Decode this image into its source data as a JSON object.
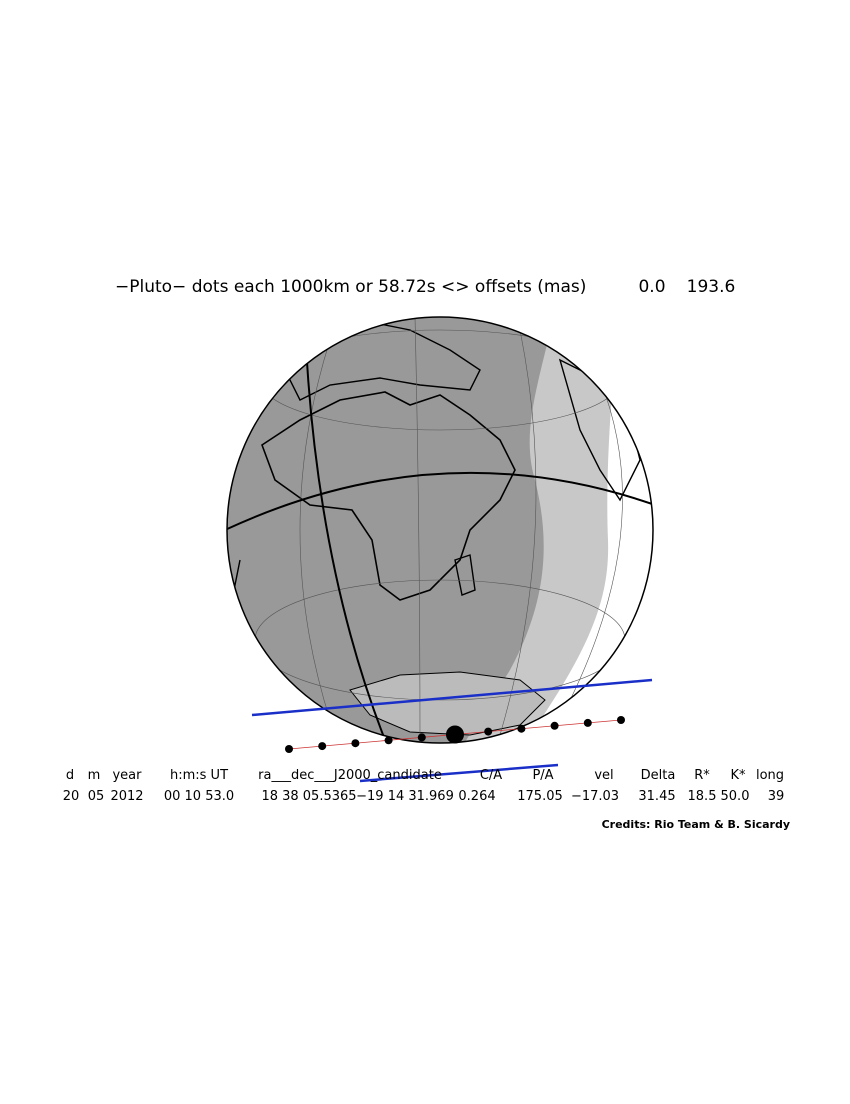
{
  "header": {
    "title": "−Pluto− dots each 1000km or 58.72s <> offsets (mas)",
    "offset_x": "0.0",
    "offset_y": "193.6"
  },
  "table": {
    "columns": [
      "d",
      "m",
      "year",
      "h:m:s UT",
      "ra___dec___J2000_candidate",
      "C/A",
      "P/A",
      "vel",
      "Delta",
      "R*",
      "K*",
      "long"
    ],
    "row": [
      "20",
      "05",
      "2012",
      "00 10 53.0",
      "18 38 05.5365",
      "−19 14 31.969",
      "0.264",
      "175.05",
      "−17.03",
      "31.45",
      "18.5",
      "50.0",
      "39"
    ]
  },
  "credits": "Credits: Rio Team & B. Sicardy"
}
